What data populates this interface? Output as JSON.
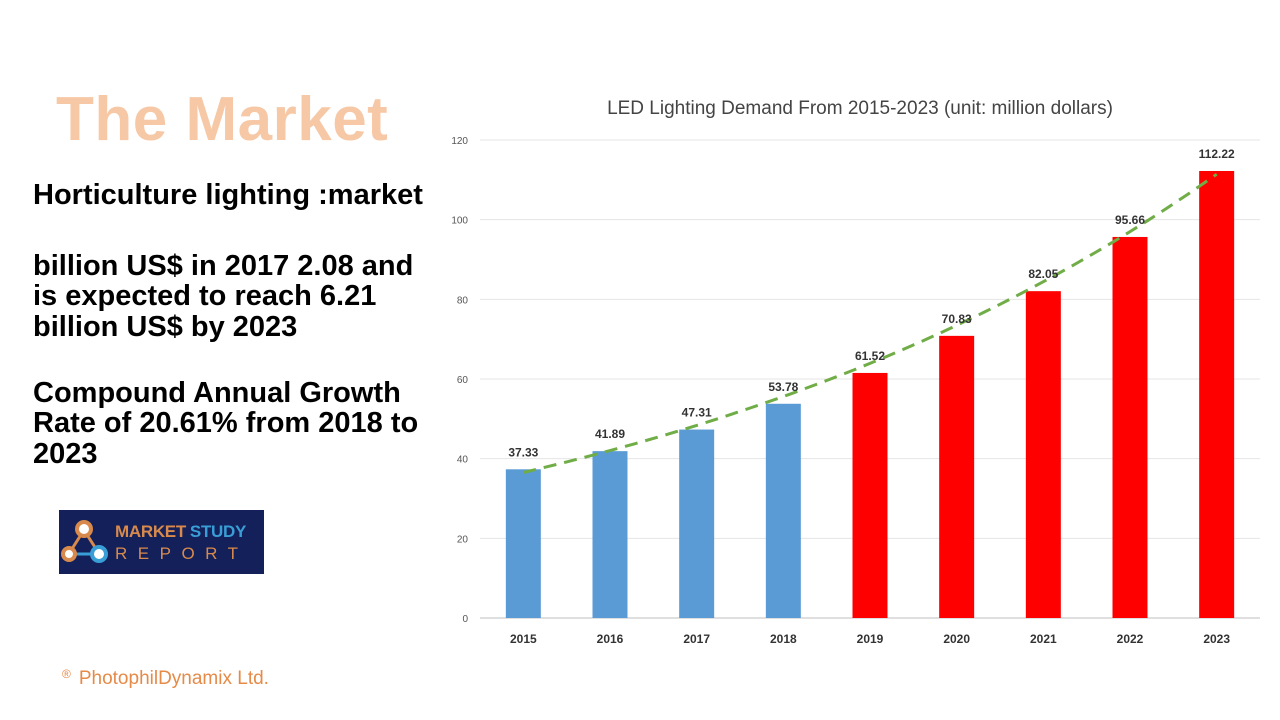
{
  "slide": {
    "title": "The Market",
    "para1": "Horticulture lighting :market",
    "para2": "billion US$ in 2017 2.08 and is expected to reach 6.21 billion US$ by 2023",
    "para3": "Compound Annual Growth Rate of 20.61% from 2018 to 2023"
  },
  "logo": {
    "word1a": "MARKET",
    "word1b": "STUDY",
    "word2": "REPORT"
  },
  "footer": {
    "symbol": "®",
    "company": "PhotophilDynamix Ltd."
  },
  "colors": {
    "title": "#f6c8a6",
    "historical_bar": "#5b9bd5",
    "forecast_bar": "#ff0000",
    "trendline": "#70ad47",
    "footer": "#e68a48"
  },
  "chart_data": {
    "type": "bar",
    "title": "LED Lighting Demand From 2015-2023 (unit: million dollars)",
    "xlabel": "",
    "ylabel": "",
    "categories": [
      "2015",
      "2016",
      "2017",
      "2018",
      "2019",
      "2020",
      "2021",
      "2022",
      "2023"
    ],
    "values": [
      37.33,
      41.89,
      47.31,
      53.78,
      61.52,
      70.83,
      82.05,
      95.66,
      112.22
    ],
    "data_labels": [
      "37.33",
      "41.89",
      "47.31",
      "53.78",
      "61.52",
      "70.83",
      "82.05",
      "95.66",
      "112.22"
    ],
    "bar_colors": [
      "#5b9bd5",
      "#5b9bd5",
      "#5b9bd5",
      "#5b9bd5",
      "#ff0000",
      "#ff0000",
      "#ff0000",
      "#ff0000",
      "#ff0000"
    ],
    "ylim": [
      0,
      120
    ],
    "yticks": [
      0,
      20,
      40,
      60,
      80,
      100,
      120
    ],
    "grid": true,
    "legend": "none",
    "trendline": {
      "style": "dashed",
      "color": "#70ad47",
      "type": "exponential"
    }
  }
}
